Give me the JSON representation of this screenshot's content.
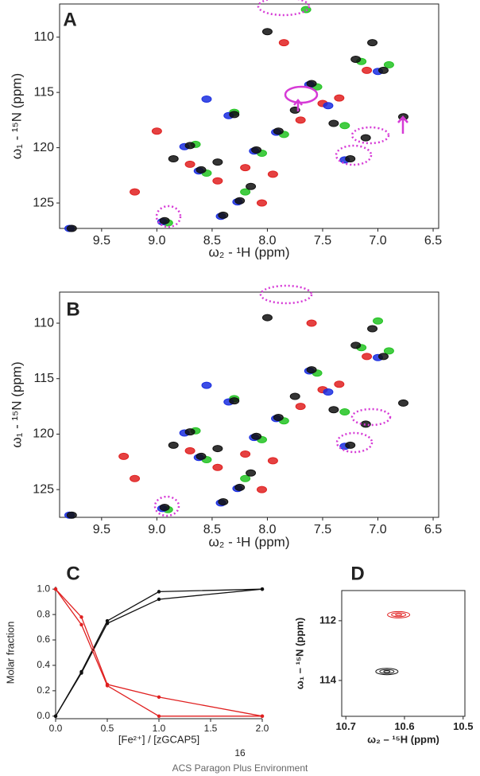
{
  "chart_data": [
    {
      "type": "scatter",
      "panel_label": "A",
      "x_label": "ω₂ - ¹H  (ppm)",
      "y_label": "ω₁ - ¹⁵N  (ppm)",
      "xlim": [
        9.88,
        6.45
      ],
      "ylim": [
        127.3,
        107.0
      ],
      "xticks": [
        9.5,
        {
          "value": 9,
          "label": "9.0"
        },
        8.5,
        {
          "value": 8,
          "label": "8.0"
        },
        7.5,
        {
          "value": 7,
          "label": "7.0"
        },
        6.5
      ],
      "yticks": [
        110,
        115,
        120,
        125
      ],
      "series": [
        {
          "color": "#22c322",
          "x": [
            8.9,
            8.55,
            8.05,
            7.85,
            7.55,
            7.15,
            7.65,
            8.65,
            8.3,
            6.9,
            8.2,
            7.3
          ],
          "values": [
            126.8,
            122.3,
            120.5,
            118.8,
            114.5,
            112.2,
            107.5,
            119.7,
            116.8,
            112.5,
            124.0,
            118.0
          ]
        },
        {
          "color": "#e02020",
          "x": [
            9.2,
            8.7,
            8.2,
            7.95,
            7.7,
            7.5,
            7.85,
            8.45,
            7.35,
            9.0,
            8.05,
            7.1
          ],
          "values": [
            124.0,
            121.5,
            121.8,
            122.4,
            117.5,
            116.0,
            110.5,
            123.0,
            115.5,
            118.5,
            125.0,
            113.0
          ]
        },
        {
          "color": "#1a2ee0",
          "x": [
            9.79,
            8.95,
            8.42,
            8.27,
            8.62,
            8.12,
            7.92,
            7.62,
            7.0,
            7.3,
            8.35,
            8.75,
            7.45,
            8.55
          ],
          "values": [
            127.3,
            126.7,
            126.2,
            124.9,
            122.1,
            120.3,
            118.6,
            114.3,
            113.1,
            121.1,
            117.1,
            119.9,
            116.2,
            115.6
          ]
        },
        {
          "color": "#111111",
          "x": [
            9.77,
            8.93,
            8.4,
            8.25,
            8.6,
            8.45,
            8.1,
            7.9,
            7.75,
            7.6,
            7.2,
            6.95,
            7.11,
            7.25,
            6.77,
            8.0,
            8.7,
            8.3,
            7.4,
            8.15,
            8.85,
            7.05
          ],
          "values": [
            127.3,
            126.6,
            126.1,
            124.8,
            122.0,
            121.3,
            120.2,
            118.5,
            116.6,
            114.2,
            112.0,
            113.0,
            119.1,
            121.0,
            117.2,
            109.5,
            119.8,
            117.0,
            117.8,
            123.5,
            121.0,
            110.5
          ]
        }
      ]
    },
    {
      "type": "scatter",
      "panel_label": "B",
      "x_label": "ω₂ - ¹H  (ppm)",
      "y_label": "ω₁ - ¹⁵N  (ppm)",
      "xlim": [
        9.88,
        6.45
      ],
      "ylim": [
        127.5,
        107.2
      ],
      "xticks": [
        9.5,
        {
          "value": 9,
          "label": "9.0"
        },
        8.5,
        {
          "value": 8,
          "label": "8.0"
        },
        7.5,
        {
          "value": 7,
          "label": "7.0"
        },
        6.5
      ],
      "yticks": [
        110,
        115,
        120,
        125
      ],
      "series": [
        {
          "color": "#22c322",
          "x": [
            8.9,
            8.55,
            8.05,
            7.85,
            7.55,
            7.15,
            7.0,
            8.65,
            8.3,
            6.9,
            8.2,
            7.3
          ],
          "values": [
            126.8,
            122.3,
            120.5,
            118.8,
            114.5,
            112.2,
            109.8,
            119.7,
            116.8,
            112.5,
            124.0,
            118.0
          ]
        },
        {
          "color": "#e02020",
          "x": [
            9.2,
            8.7,
            8.2,
            7.95,
            7.7,
            7.5,
            7.6,
            8.45,
            7.35,
            9.3,
            8.05,
            7.1
          ],
          "values": [
            124.0,
            121.5,
            121.8,
            122.4,
            117.5,
            116.0,
            110.0,
            123.0,
            115.5,
            122.0,
            125.0,
            113.0
          ]
        },
        {
          "color": "#1a2ee0",
          "x": [
            9.79,
            8.95,
            8.42,
            8.27,
            8.62,
            8.12,
            7.92,
            7.62,
            7.0,
            7.3,
            8.35,
            8.75,
            7.45,
            8.55
          ],
          "values": [
            127.3,
            126.7,
            126.2,
            124.9,
            122.1,
            120.3,
            118.6,
            114.3,
            113.1,
            121.1,
            117.1,
            119.9,
            116.2,
            115.6
          ]
        },
        {
          "color": "#111111",
          "x": [
            9.77,
            8.93,
            8.4,
            8.25,
            8.6,
            8.45,
            8.1,
            7.9,
            7.75,
            7.6,
            7.2,
            6.95,
            7.11,
            7.25,
            6.77,
            8.0,
            8.7,
            8.3,
            7.4,
            8.15,
            8.85,
            7.05
          ],
          "values": [
            127.3,
            126.6,
            126.1,
            124.8,
            122.0,
            121.3,
            120.2,
            118.5,
            116.6,
            114.2,
            112.0,
            113.0,
            119.1,
            121.0,
            117.2,
            109.5,
            119.8,
            117.0,
            117.8,
            123.5,
            121.0,
            110.5
          ]
        }
      ]
    },
    {
      "type": "line",
      "panel_label": "C",
      "x_label": "[Fe²⁺] / [zGCAP5]",
      "y_label": "Molar fraction",
      "xlim": [
        0,
        2
      ],
      "ylim": [
        -0.02,
        1.02
      ],
      "xticks": [
        {
          "value": 0,
          "label": "0.0"
        },
        0.5,
        {
          "value": 1,
          "label": "1.0"
        },
        1.5,
        {
          "value": 2,
          "label": "2.0"
        }
      ],
      "yticks": [
        {
          "value": 0,
          "label": "0.0"
        },
        0.2,
        0.4,
        0.6,
        0.8,
        {
          "value": 1,
          "label": "1.0"
        }
      ],
      "x": [
        0,
        0.25,
        0.5,
        1.0,
        2.0
      ],
      "series": [
        {
          "color": "#111111",
          "values": [
            0,
            0.35,
            0.75,
            0.98,
            1.0
          ]
        },
        {
          "color": "#111111",
          "values": [
            0,
            0.34,
            0.73,
            0.92,
            1.0
          ]
        },
        {
          "color": "#e02020",
          "values": [
            1.0,
            0.78,
            0.25,
            0.15,
            0.0
          ]
        },
        {
          "color": "#e02020",
          "values": [
            1.0,
            0.72,
            0.24,
            0.0,
            0.0
          ]
        }
      ]
    },
    {
      "type": "contour",
      "panel_label": "D",
      "x_label": "ω₂ – ¹⁵H (ppm)",
      "y_label": "ω₁ – ¹⁵N (ppm)",
      "xlim": [
        10.707,
        10.497
      ],
      "ylim": [
        115.2,
        110.99
      ],
      "xticks": [
        10.7,
        10.6,
        10.5
      ],
      "yticks": [
        112,
        114
      ],
      "series": [
        {
          "color": "#e02020",
          "x": [
            10.61
          ],
          "values": [
            111.8
          ]
        },
        {
          "color": "#111111",
          "x": [
            10.63
          ],
          "values": [
            113.7
          ]
        }
      ]
    }
  ],
  "footer": {
    "page_number": "16",
    "text": "ACS Paragon Plus Environment"
  }
}
